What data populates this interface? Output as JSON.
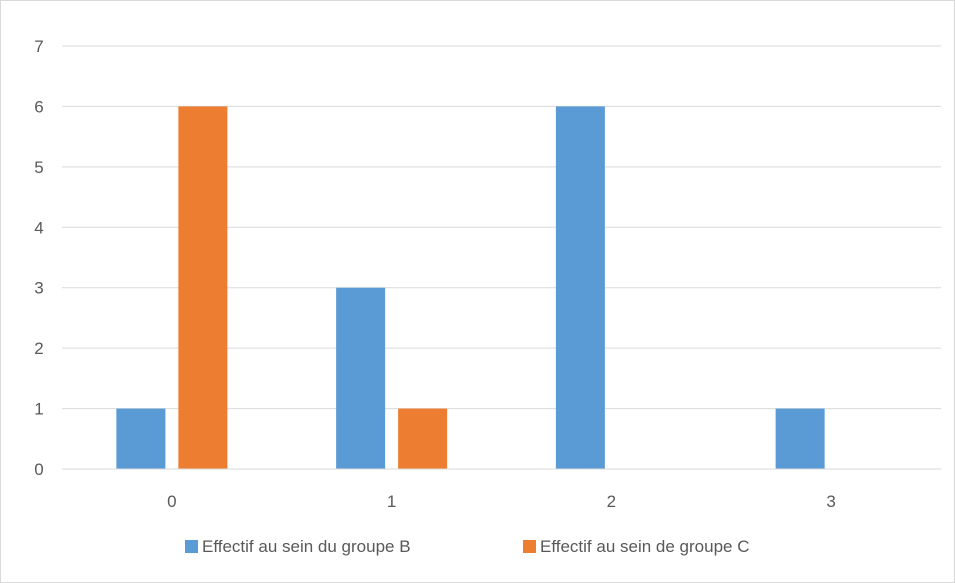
{
  "chart_data": {
    "type": "bar",
    "categories": [
      "0",
      "1",
      "2",
      "3"
    ],
    "series": [
      {
        "name": "Effectif au sein du groupe B",
        "values": [
          1,
          3,
          6,
          1
        ],
        "color": "#5B9BD5"
      },
      {
        "name": "Effectif au sein de groupe C",
        "values": [
          6,
          1,
          0,
          0
        ],
        "color": "#ED7D31"
      }
    ],
    "ylim": [
      0,
      7
    ],
    "yticks": [
      "0",
      "1",
      "2",
      "3",
      "4",
      "5",
      "6",
      "7"
    ],
    "grid": true,
    "legend_position": "bottom",
    "title": "",
    "xlabel": "",
    "ylabel": ""
  }
}
